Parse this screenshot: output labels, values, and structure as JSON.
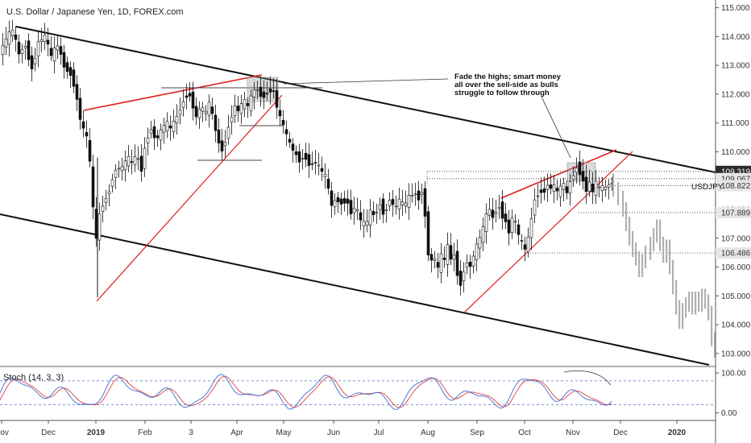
{
  "chart_data": {
    "type": "candlestick",
    "title": "U.S. Dollar / Japanese Yen, 1D, FOREX.com",
    "symbol": "USDJPY",
    "price_axis": {
      "min": 102.8,
      "max": 115.1,
      "ticks": [
        "115.000",
        "114.000",
        "113.000",
        "112.000",
        "111.000",
        "110.000",
        "109.000",
        "108.000",
        "107.000",
        "106.000",
        "105.000",
        "104.000",
        "103.000"
      ]
    },
    "price_tags": [
      {
        "value": 109.319,
        "label": "109.319",
        "style": "dark"
      },
      {
        "value": 109.067,
        "label": "109.067",
        "style": "light"
      },
      {
        "value": 108.822,
        "label": "108.822",
        "style": "light"
      },
      {
        "value": 107.889,
        "label": "107.889",
        "style": "light"
      },
      {
        "value": 106.486,
        "label": "106.486",
        "style": "light"
      }
    ],
    "time_axis": {
      "labels": [
        "Nov",
        "Dec",
        "2019",
        "Feb",
        "3",
        "Apr",
        "May",
        "Jun",
        "Jul",
        "Aug",
        "Sep",
        "Oct",
        "Nov",
        "Dec",
        "2020"
      ],
      "bold": [
        "2019",
        "2020"
      ]
    },
    "annotation": {
      "lines": [
        "Fade the highs; smart money",
        "all over the sell-side as bulls",
        "struggle to follow through"
      ]
    },
    "price_path": [
      [
        0,
        113.3
      ],
      [
        10,
        113.9
      ],
      [
        18,
        114.2
      ],
      [
        26,
        113.4
      ],
      [
        34,
        113.7
      ],
      [
        42,
        112.9
      ],
      [
        50,
        113.8
      ],
      [
        58,
        114.0
      ],
      [
        66,
        113.3
      ],
      [
        74,
        113.7
      ],
      [
        82,
        113.0
      ],
      [
        90,
        112.7
      ],
      [
        96,
        112.2
      ],
      [
        100,
        111.4
      ],
      [
        105,
        110.8
      ],
      [
        110,
        110.5
      ],
      [
        114,
        109.6
      ],
      [
        118,
        108.0
      ],
      [
        121,
        106.7
      ],
      [
        124,
        107.6
      ],
      [
        130,
        108.2
      ],
      [
        136,
        108.5
      ],
      [
        142,
        109.1
      ],
      [
        148,
        109.5
      ],
      [
        154,
        109.4
      ],
      [
        160,
        109.8
      ],
      [
        166,
        109.6
      ],
      [
        172,
        109.9
      ],
      [
        178,
        109.4
      ],
      [
        184,
        110.5
      ],
      [
        190,
        110.8
      ],
      [
        196,
        110.4
      ],
      [
        202,
        110.7
      ],
      [
        208,
        111.0
      ],
      [
        214,
        110.8
      ],
      [
        220,
        111.1
      ],
      [
        226,
        111.5
      ],
      [
        232,
        111.9
      ],
      [
        236,
        112.1
      ],
      [
        240,
        111.8
      ],
      [
        246,
        111.2
      ],
      [
        252,
        111.6
      ],
      [
        258,
        111.3
      ],
      [
        262,
        111.7
      ],
      [
        268,
        111.0
      ],
      [
        273,
        110.4
      ],
      [
        277,
        110.0
      ],
      [
        281,
        110.3
      ],
      [
        287,
        111.0
      ],
      [
        293,
        111.6
      ],
      [
        299,
        111.4
      ],
      [
        305,
        111.8
      ],
      [
        311,
        111.5
      ],
      [
        317,
        112.2
      ],
      [
        323,
        112.1
      ],
      [
        329,
        111.9
      ],
      [
        335,
        112.1
      ],
      [
        341,
        112.2
      ],
      [
        345,
        111.7
      ],
      [
        349,
        111.2
      ],
      [
        353,
        111.0
      ],
      [
        357,
        110.6
      ],
      [
        363,
        110.2
      ],
      [
        369,
        109.9
      ],
      [
        375,
        109.7
      ],
      [
        381,
        109.9
      ],
      [
        387,
        109.5
      ],
      [
        393,
        109.7
      ],
      [
        399,
        109.4
      ],
      [
        405,
        109.2
      ],
      [
        410,
        108.7
      ],
      [
        414,
        108.1
      ],
      [
        420,
        108.4
      ],
      [
        426,
        108.2
      ],
      [
        432,
        108.4
      ],
      [
        438,
        107.9
      ],
      [
        444,
        108.1
      ],
      [
        450,
        107.6
      ],
      [
        456,
        107.4
      ],
      [
        462,
        107.9
      ],
      [
        468,
        107.8
      ],
      [
        474,
        108.2
      ],
      [
        480,
        107.8
      ],
      [
        486,
        108.4
      ],
      [
        492,
        108.0
      ],
      [
        498,
        108.3
      ],
      [
        504,
        108.1
      ],
      [
        510,
        108.4
      ],
      [
        516,
        108.6
      ],
      [
        522,
        108.4
      ],
      [
        528,
        108.8
      ],
      [
        531,
        107.3
      ],
      [
        534,
        106.5
      ],
      [
        538,
        106.2
      ],
      [
        542,
        106.3
      ],
      [
        546,
        105.9
      ],
      [
        550,
        106.4
      ],
      [
        554,
        106.2
      ],
      [
        558,
        106.7
      ],
      [
        562,
        106.3
      ],
      [
        566,
        106.4
      ],
      [
        570,
        105.8
      ],
      [
        574,
        105.4
      ],
      [
        578,
        105.9
      ],
      [
        582,
        106.2
      ],
      [
        586,
        106.0
      ],
      [
        590,
        106.4
      ],
      [
        594,
        106.7
      ],
      [
        598,
        107.0
      ],
      [
        602,
        107.3
      ],
      [
        606,
        107.8
      ],
      [
        610,
        108.0
      ],
      [
        614,
        107.7
      ],
      [
        618,
        108.0
      ],
      [
        622,
        108.1
      ],
      [
        626,
        107.8
      ],
      [
        630,
        107.6
      ],
      [
        634,
        107.2
      ],
      [
        638,
        107.7
      ],
      [
        642,
        107.5
      ],
      [
        646,
        107.1
      ],
      [
        650,
        106.8
      ],
      [
        654,
        106.6
      ],
      [
        658,
        107.0
      ],
      [
        662,
        107.7
      ],
      [
        666,
        108.4
      ],
      [
        670,
        108.5
      ],
      [
        674,
        108.7
      ],
      [
        678,
        108.6
      ],
      [
        682,
        108.9
      ],
      [
        686,
        108.7
      ],
      [
        690,
        108.8
      ],
      [
        694,
        108.6
      ],
      [
        698,
        108.7
      ],
      [
        702,
        108.9
      ],
      [
        706,
        108.5
      ],
      [
        710,
        109.0
      ],
      [
        714,
        109.2
      ],
      [
        718,
        109.5
      ],
      [
        722,
        109.3
      ],
      [
        726,
        109.0
      ],
      [
        730,
        108.7
      ],
      [
        734,
        108.9
      ],
      [
        738,
        108.6
      ],
      [
        742,
        108.9
      ],
      [
        746,
        108.7
      ],
      [
        750,
        108.8
      ],
      [
        754,
        108.7
      ],
      [
        758,
        108.9
      ]
    ],
    "projection_path": [
      [
        760,
        109.0
      ],
      [
        766,
        108.7
      ],
      [
        772,
        108.4
      ],
      [
        776,
        108.0
      ],
      [
        780,
        107.5
      ],
      [
        784,
        107.0
      ],
      [
        788,
        106.6
      ],
      [
        792,
        106.3
      ],
      [
        796,
        105.9
      ],
      [
        800,
        106.2
      ],
      [
        806,
        106.5
      ],
      [
        810,
        106.8
      ],
      [
        814,
        107.1
      ],
      [
        818,
        107.4
      ],
      [
        822,
        106.8
      ],
      [
        826,
        106.4
      ],
      [
        830,
        106.7
      ],
      [
        834,
        106.0
      ],
      [
        838,
        105.3
      ],
      [
        842,
        104.6
      ],
      [
        846,
        104.1
      ],
      [
        850,
        104.5
      ],
      [
        854,
        104.7
      ],
      [
        858,
        104.9
      ],
      [
        862,
        104.6
      ],
      [
        866,
        104.9
      ],
      [
        870,
        104.7
      ],
      [
        874,
        105.0
      ],
      [
        878,
        104.8
      ],
      [
        882,
        104.4
      ],
      [
        886,
        103.5
      ],
      [
        890,
        103.1
      ]
    ],
    "stoch_axis": {
      "min": -15,
      "max": 110,
      "ticks": [
        "100.00",
        "0.00"
      ],
      "bands": [
        80,
        20
      ]
    },
    "stoch_label": "Stoch (14, 3, 3)"
  }
}
